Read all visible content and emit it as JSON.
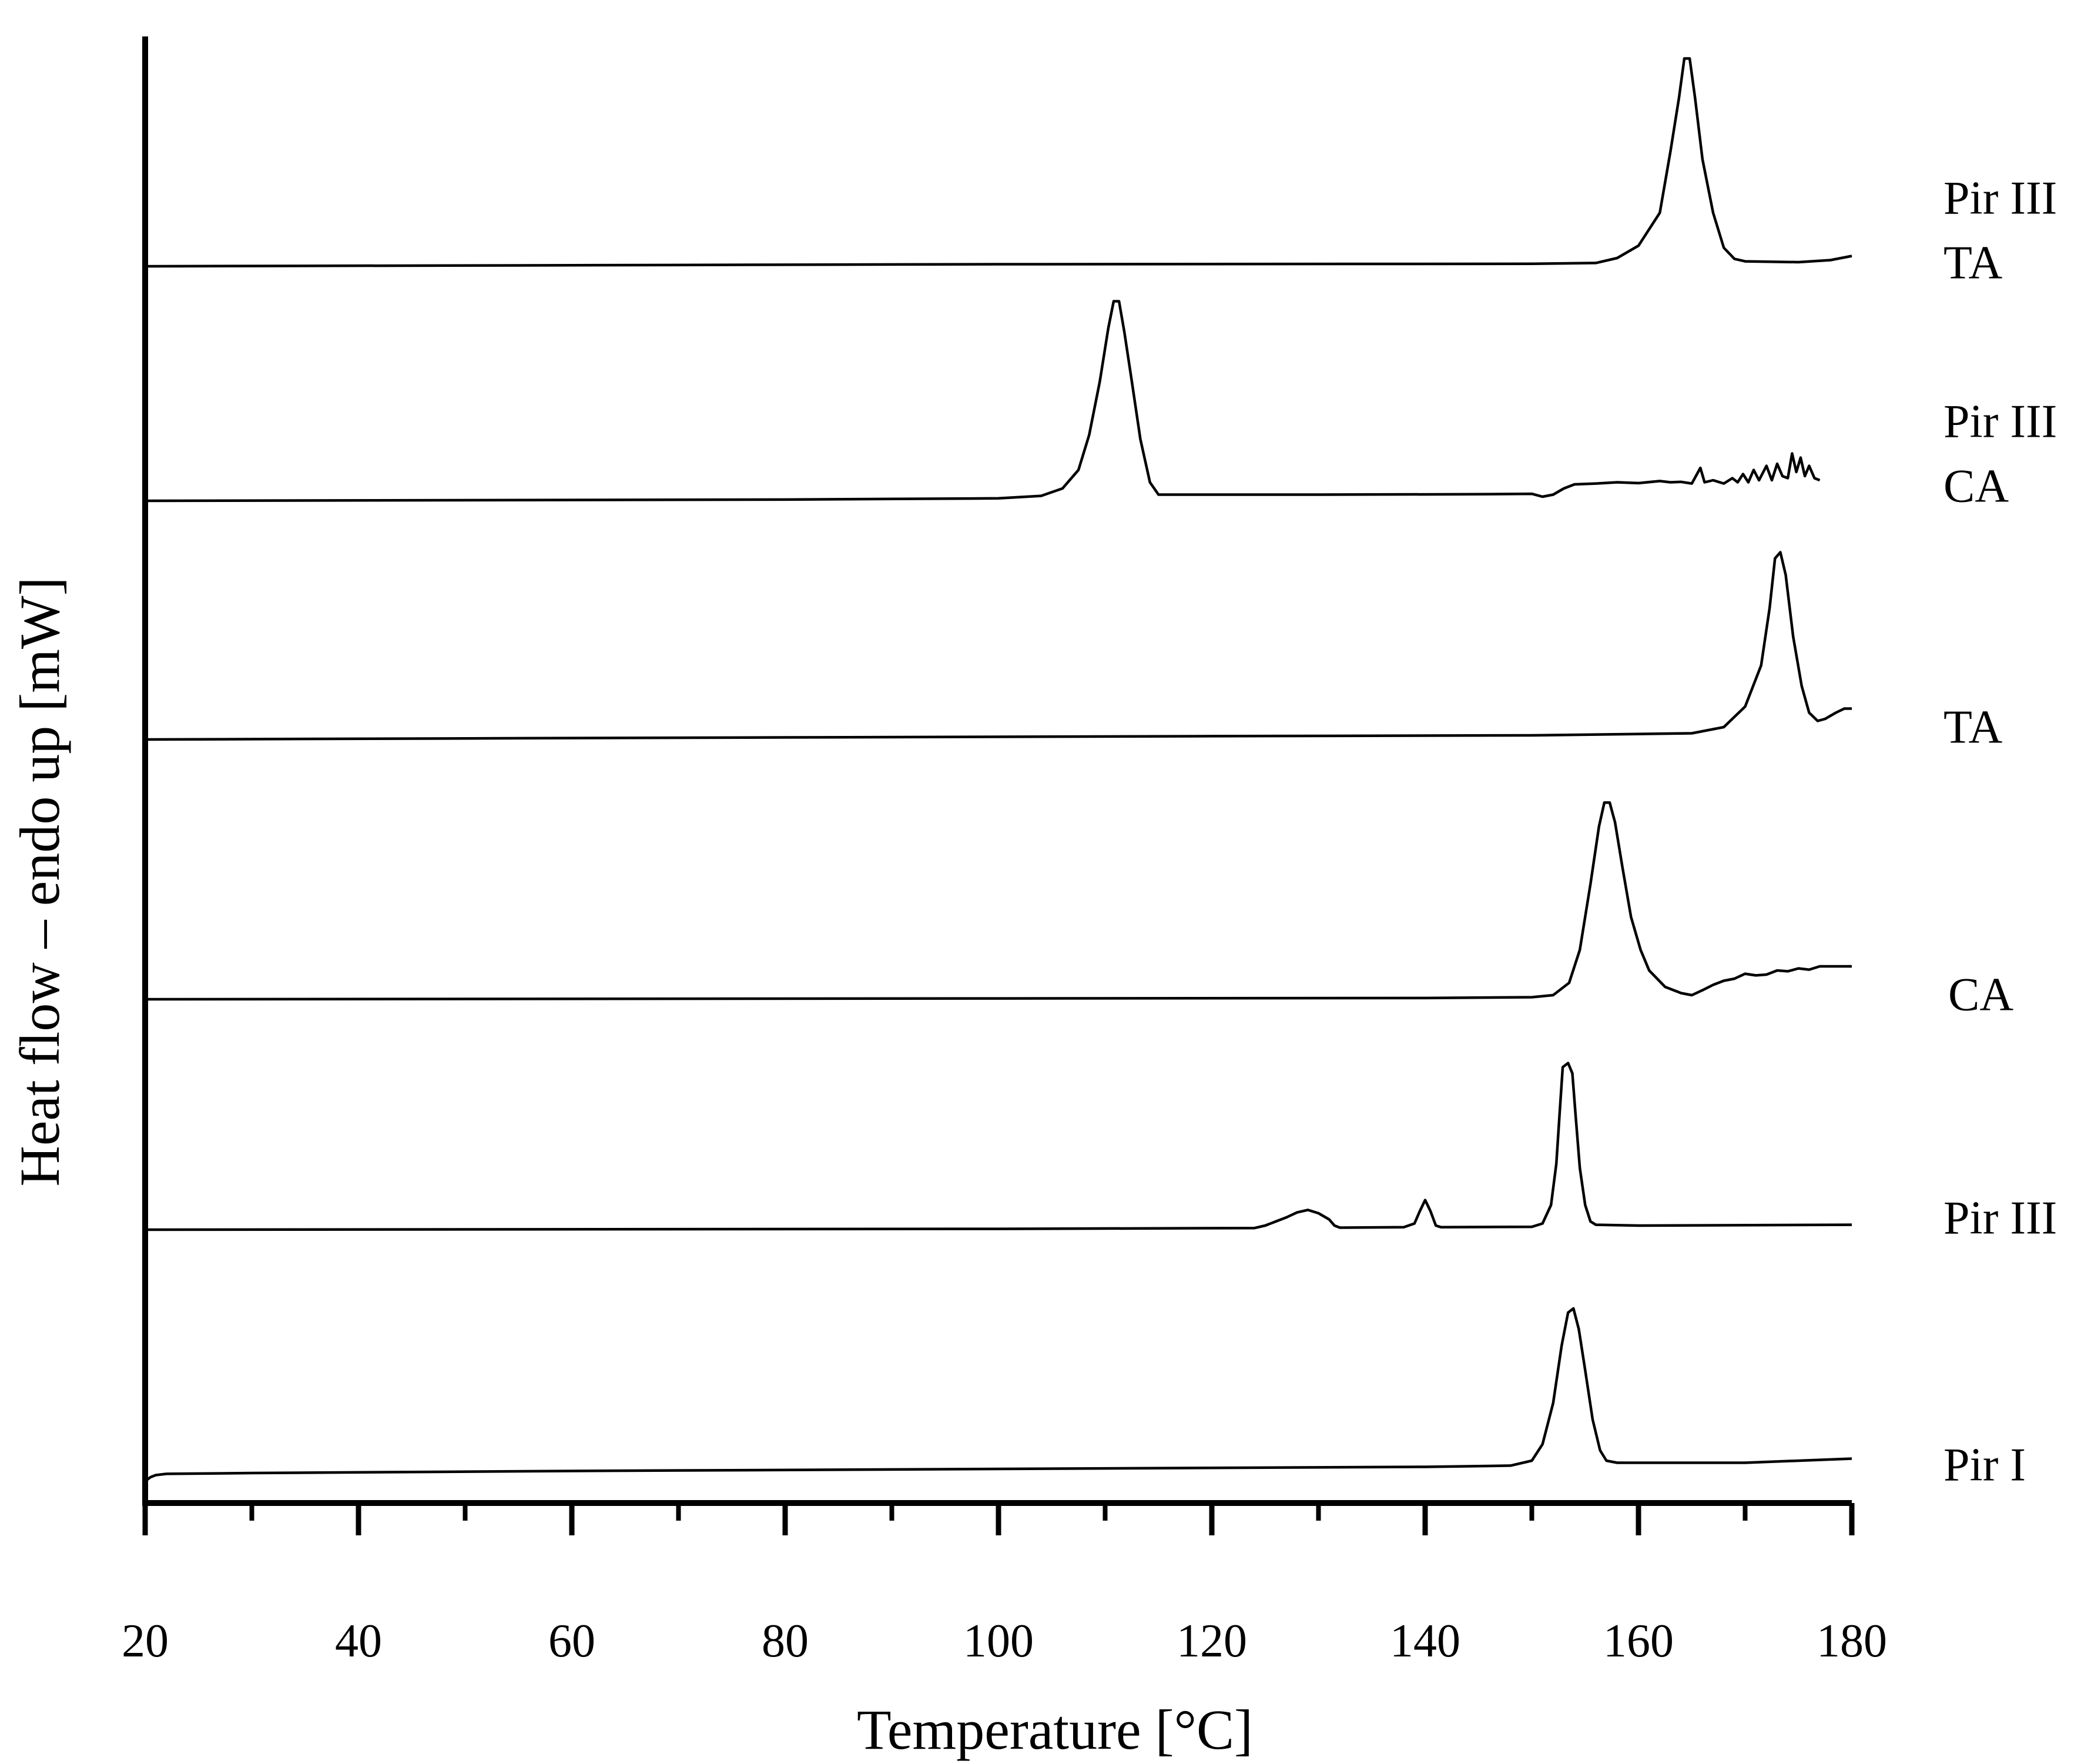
{
  "chart_data": {
    "type": "line",
    "xlabel": "Temperature [°C]",
    "ylabel": "Heat flow – endo up [mW]",
    "xlim": [
      20,
      180
    ],
    "major_ticks": [
      20,
      40,
      60,
      80,
      100,
      120,
      140,
      160,
      180
    ],
    "minor_ticks": [
      30,
      50,
      70,
      90,
      110,
      130,
      150,
      170
    ],
    "y_tick_labels": false,
    "grid": false,
    "colors": {
      "line": "#000000",
      "axis": "#000000",
      "background": "#ffffff"
    },
    "series": [
      {
        "label_lines": [
          "Pir III",
          "TA"
        ],
        "points": [
          [
            20,
            0
          ],
          [
            100,
            0.05
          ],
          [
            150,
            0.06
          ],
          [
            156,
            0.08
          ],
          [
            158,
            0.2
          ],
          [
            160,
            0.5
          ],
          [
            162,
            1.3
          ],
          [
            163,
            2.8
          ],
          [
            163.8,
            4.1
          ],
          [
            164.3,
            5.05
          ],
          [
            164.8,
            5.05
          ],
          [
            165.3,
            4.1
          ],
          [
            166,
            2.6
          ],
          [
            167,
            1.3
          ],
          [
            168,
            0.45
          ],
          [
            169,
            0.18
          ],
          [
            170,
            0.12
          ],
          [
            175,
            0.1
          ],
          [
            178,
            0.15
          ],
          [
            180,
            0.25
          ]
        ]
      },
      {
        "label_lines": [
          "Pir III",
          "CA"
        ],
        "points": [
          [
            20,
            0
          ],
          [
            80,
            0.03
          ],
          [
            100,
            0.06
          ],
          [
            104,
            0.12
          ],
          [
            106,
            0.3
          ],
          [
            107.5,
            0.75
          ],
          [
            108.5,
            1.6
          ],
          [
            109.5,
            2.9
          ],
          [
            110.3,
            4.2
          ],
          [
            110.8,
            4.85
          ],
          [
            111.3,
            4.85
          ],
          [
            111.8,
            4.1
          ],
          [
            112.5,
            2.9
          ],
          [
            113.3,
            1.5
          ],
          [
            114.2,
            0.45
          ],
          [
            115,
            0.15
          ],
          [
            130,
            0.15
          ],
          [
            145,
            0.16
          ],
          [
            150,
            0.17
          ],
          [
            151,
            0.1
          ],
          [
            152,
            0.15
          ],
          [
            153,
            0.3
          ],
          [
            154,
            0.4
          ],
          [
            156,
            0.42
          ],
          [
            158,
            0.45
          ],
          [
            160,
            0.43
          ],
          [
            162,
            0.48
          ],
          [
            163,
            0.45
          ],
          [
            164,
            0.46
          ],
          [
            165,
            0.42
          ],
          [
            165.8,
            0.8
          ],
          [
            166.2,
            0.45
          ],
          [
            167,
            0.5
          ],
          [
            168,
            0.42
          ],
          [
            168.8,
            0.55
          ],
          [
            169.3,
            0.45
          ],
          [
            169.8,
            0.65
          ],
          [
            170.3,
            0.45
          ],
          [
            170.8,
            0.75
          ],
          [
            171.3,
            0.5
          ],
          [
            172,
            0.85
          ],
          [
            172.5,
            0.5
          ],
          [
            173,
            0.9
          ],
          [
            173.5,
            0.6
          ],
          [
            174,
            0.55
          ],
          [
            174.4,
            1.15
          ],
          [
            174.8,
            0.7
          ],
          [
            175.2,
            1.05
          ],
          [
            175.6,
            0.6
          ],
          [
            176,
            0.85
          ],
          [
            176.5,
            0.55
          ],
          [
            177,
            0.5
          ]
        ]
      },
      {
        "label_lines": [
          "TA"
        ],
        "points": [
          [
            20,
            0
          ],
          [
            80,
            0.05
          ],
          [
            120,
            0.08
          ],
          [
            150,
            0.1
          ],
          [
            165,
            0.15
          ],
          [
            168,
            0.3
          ],
          [
            170,
            0.8
          ],
          [
            171.5,
            1.8
          ],
          [
            172.3,
            3.2
          ],
          [
            172.8,
            4.4
          ],
          [
            173.3,
            4.55
          ],
          [
            173.8,
            4.0
          ],
          [
            174.5,
            2.5
          ],
          [
            175.3,
            1.3
          ],
          [
            176,
            0.65
          ],
          [
            176.8,
            0.45
          ],
          [
            177.5,
            0.5
          ],
          [
            178.5,
            0.65
          ],
          [
            179.3,
            0.75
          ],
          [
            180,
            0.75
          ]
        ]
      },
      {
        "label_lines": [
          "CA"
        ],
        "points": [
          [
            20,
            0
          ],
          [
            100,
            0.02
          ],
          [
            140,
            0.03
          ],
          [
            150,
            0.05
          ],
          [
            152,
            0.1
          ],
          [
            153.5,
            0.4
          ],
          [
            154.5,
            1.2
          ],
          [
            155.5,
            2.8
          ],
          [
            156.3,
            4.2
          ],
          [
            156.8,
            4.78
          ],
          [
            157.3,
            4.78
          ],
          [
            157.8,
            4.3
          ],
          [
            158.5,
            3.2
          ],
          [
            159.3,
            2.0
          ],
          [
            160.2,
            1.2
          ],
          [
            161,
            0.7
          ],
          [
            162.5,
            0.3
          ],
          [
            164,
            0.15
          ],
          [
            165,
            0.1
          ],
          [
            166,
            0.22
          ],
          [
            167,
            0.35
          ],
          [
            168,
            0.45
          ],
          [
            169,
            0.5
          ],
          [
            170,
            0.62
          ],
          [
            171,
            0.58
          ],
          [
            172,
            0.6
          ],
          [
            173,
            0.7
          ],
          [
            174,
            0.68
          ],
          [
            175,
            0.75
          ],
          [
            176,
            0.72
          ],
          [
            177,
            0.8
          ],
          [
            178,
            0.8
          ],
          [
            180,
            0.8
          ]
        ]
      },
      {
        "label_lines": [
          "Pir III"
        ],
        "points": [
          [
            20,
            0
          ],
          [
            100,
            0.02
          ],
          [
            124,
            0.04
          ],
          [
            125,
            0.1
          ],
          [
            126,
            0.2
          ],
          [
            127,
            0.3
          ],
          [
            128,
            0.42
          ],
          [
            129,
            0.48
          ],
          [
            130,
            0.4
          ],
          [
            131,
            0.25
          ],
          [
            131.5,
            0.1
          ],
          [
            132,
            0.05
          ],
          [
            138,
            0.06
          ],
          [
            139,
            0.15
          ],
          [
            139.5,
            0.45
          ],
          [
            140,
            0.72
          ],
          [
            140.5,
            0.45
          ],
          [
            141,
            0.1
          ],
          [
            141.5,
            0.06
          ],
          [
            150,
            0.07
          ],
          [
            151,
            0.15
          ],
          [
            151.8,
            0.6
          ],
          [
            152.3,
            1.6
          ],
          [
            152.6,
            2.8
          ],
          [
            152.9,
            3.95
          ],
          [
            153.4,
            4.05
          ],
          [
            153.8,
            3.8
          ],
          [
            154.1,
            2.8
          ],
          [
            154.5,
            1.5
          ],
          [
            155,
            0.6
          ],
          [
            155.5,
            0.2
          ],
          [
            156,
            0.12
          ],
          [
            160,
            0.1
          ],
          [
            180,
            0.12
          ]
        ]
      },
      {
        "label_lines": [
          "Pir I"
        ],
        "points": [
          [
            20,
            0
          ],
          [
            20.5,
            0.1
          ],
          [
            21,
            0.15
          ],
          [
            22,
            0.18
          ],
          [
            30,
            0.2
          ],
          [
            60,
            0.25
          ],
          [
            100,
            0.3
          ],
          [
            140,
            0.35
          ],
          [
            148,
            0.38
          ],
          [
            150,
            0.5
          ],
          [
            151,
            0.9
          ],
          [
            152,
            1.9
          ],
          [
            152.8,
            3.3
          ],
          [
            153.4,
            4.1
          ],
          [
            153.9,
            4.2
          ],
          [
            154.4,
            3.7
          ],
          [
            155,
            2.7
          ],
          [
            155.7,
            1.5
          ],
          [
            156.4,
            0.75
          ],
          [
            157,
            0.5
          ],
          [
            158,
            0.45
          ],
          [
            170,
            0.45
          ],
          [
            180,
            0.55
          ]
        ]
      }
    ]
  }
}
